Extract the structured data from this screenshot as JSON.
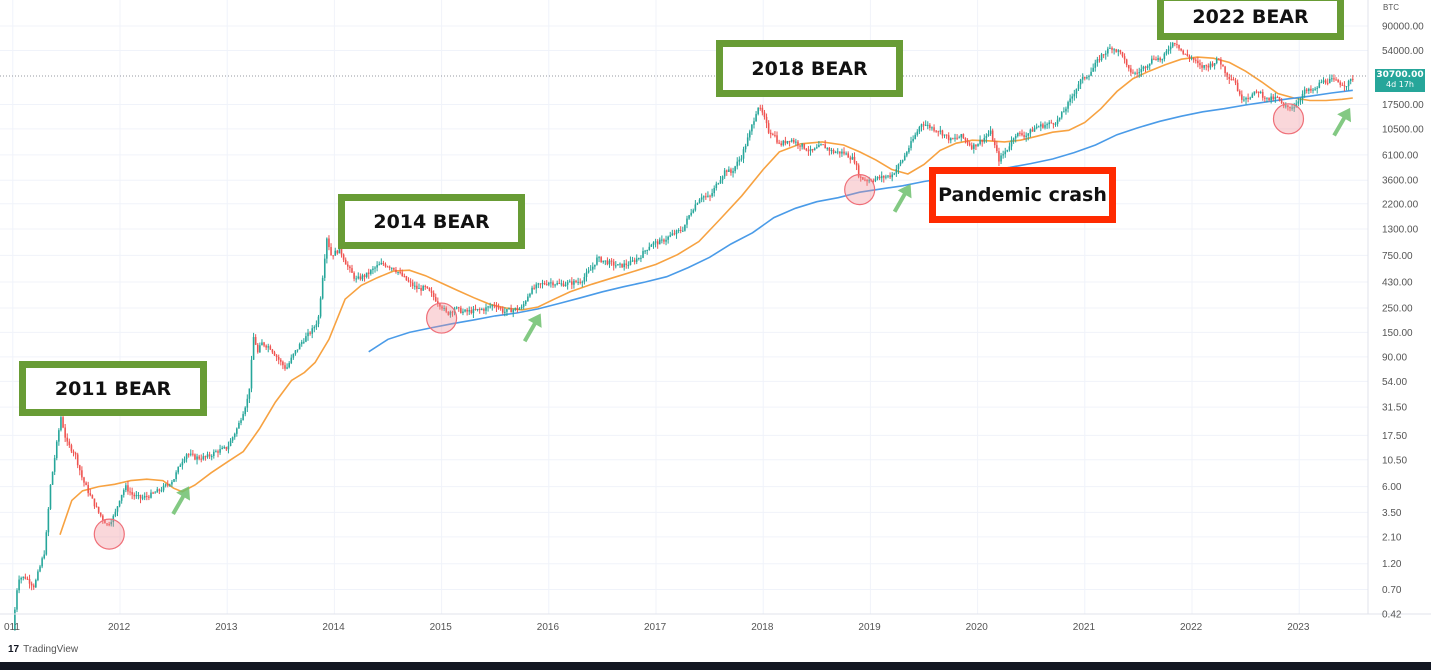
{
  "chart_data": {
    "type": "candlestick",
    "symbol_currency": "BTC",
    "scale": "log",
    "ylim": [
      0.42,
      90000
    ],
    "y_ticks": [
      "90000.00",
      "54000.00",
      "17500.00",
      "10500.00",
      "6100.00",
      "3600.00",
      "2200.00",
      "1300.00",
      "750.00",
      "430.00",
      "250.00",
      "150.00",
      "90.00",
      "54.00",
      "31.50",
      "17.50",
      "10.50",
      "6.00",
      "3.50",
      "2.10",
      "1.20",
      "0.70",
      "0.42"
    ],
    "x_ticks": [
      "011",
      "2012",
      "2013",
      "2014",
      "2015",
      "2016",
      "2017",
      "2018",
      "2019",
      "2020",
      "2021",
      "2022",
      "2023"
    ],
    "current_price": "30700.00",
    "current_price_countdown": "4d 17h",
    "price_series": [
      [
        "2011.00",
        0.3
      ],
      [
        "2011.05",
        0.9
      ],
      [
        "2011.12",
        0.9
      ],
      [
        "2011.20",
        0.75
      ],
      [
        "2011.30",
        1.6
      ],
      [
        "2011.35",
        6
      ],
      [
        "2011.42",
        17
      ],
      [
        "2011.45",
        26
      ],
      [
        "2011.50",
        15
      ],
      [
        "2011.58",
        12
      ],
      [
        "2011.65",
        7
      ],
      [
        "2011.72",
        5
      ],
      [
        "2011.80",
        3.5
      ],
      [
        "2011.88",
        2.7
      ],
      [
        "2011.95",
        3.3
      ],
      [
        "2012.00",
        4.8
      ],
      [
        "2012.05",
        6.0
      ],
      [
        "2012.12",
        5
      ],
      [
        "2012.20",
        4.7
      ],
      [
        "2012.30",
        5.1
      ],
      [
        "2012.40",
        5.8
      ],
      [
        "2012.50",
        7
      ],
      [
        "2012.57",
        10
      ],
      [
        "2012.62",
        12
      ],
      [
        "2012.70",
        11
      ],
      [
        "2012.80",
        11
      ],
      [
        "2012.90",
        12.5
      ],
      [
        "2013.00",
        13.5
      ],
      [
        "2013.10",
        21
      ],
      [
        "2013.20",
        40
      ],
      [
        "2013.25",
        150
      ],
      [
        "2013.28",
        95
      ],
      [
        "2013.32",
        120
      ],
      [
        "2013.40",
        110
      ],
      [
        "2013.50",
        80
      ],
      [
        "2013.55",
        70
      ],
      [
        "2013.62",
        95
      ],
      [
        "2013.70",
        125
      ],
      [
        "2013.80",
        160
      ],
      [
        "2013.85",
        200
      ],
      [
        "2013.90",
        600
      ],
      [
        "2013.93",
        1100
      ],
      [
        "2013.97",
        750
      ],
      [
        "2014.05",
        850
      ],
      [
        "2014.12",
        600
      ],
      [
        "2014.20",
        450
      ],
      [
        "2014.30",
        500
      ],
      [
        "2014.40",
        600
      ],
      [
        "2014.45",
        630
      ],
      [
        "2014.55",
        580
      ],
      [
        "2014.62",
        500
      ],
      [
        "2014.70",
        420
      ],
      [
        "2014.78",
        370
      ],
      [
        "2014.85",
        380
      ],
      [
        "2014.92",
        320
      ],
      [
        "2015.00",
        260
      ],
      [
        "2015.05",
        220
      ],
      [
        "2015.12",
        250
      ],
      [
        "2015.20",
        230
      ],
      [
        "2015.30",
        235
      ],
      [
        "2015.40",
        245
      ],
      [
        "2015.50",
        270
      ],
      [
        "2015.58",
        230
      ],
      [
        "2015.65",
        240
      ],
      [
        "2015.75",
        250
      ],
      [
        "2015.82",
        350
      ],
      [
        "2015.90",
        400
      ],
      [
        "2016.00",
        430
      ],
      [
        "2016.10",
        410
      ],
      [
        "2016.20",
        420
      ],
      [
        "2016.30",
        440
      ],
      [
        "2016.40",
        570
      ],
      [
        "2016.45",
        700
      ],
      [
        "2016.55",
        650
      ],
      [
        "2016.65",
        600
      ],
      [
        "2016.75",
        630
      ],
      [
        "2016.85",
        730
      ],
      [
        "2016.95",
        950
      ],
      [
        "2017.05",
        1000
      ],
      [
        "2017.15",
        1150
      ],
      [
        "2017.25",
        1300
      ],
      [
        "2017.33",
        1900
      ],
      [
        "2017.42",
        2600
      ],
      [
        "2017.50",
        2500
      ],
      [
        "2017.58",
        3500
      ],
      [
        "2017.65",
        4500
      ],
      [
        "2017.70",
        4200
      ],
      [
        "2017.80",
        6000
      ],
      [
        "2017.88",
        10000
      ],
      [
        "2017.95",
        17000
      ],
      [
        "2018.00",
        14000
      ],
      [
        "2018.05",
        10000
      ],
      [
        "2018.10",
        9500
      ],
      [
        "2018.15",
        7500
      ],
      [
        "2018.25",
        8500
      ],
      [
        "2018.35",
        7500
      ],
      [
        "2018.45",
        6500
      ],
      [
        "2018.55",
        7500
      ],
      [
        "2018.65",
        6500
      ],
      [
        "2018.75",
        6400
      ],
      [
        "2018.85",
        5500
      ],
      [
        "2018.90",
        3800
      ],
      [
        "2018.97",
        3600
      ],
      [
        "2019.10",
        3800
      ],
      [
        "2019.20",
        4000
      ],
      [
        "2019.30",
        5500
      ],
      [
        "2019.40",
        8500
      ],
      [
        "2019.48",
        12000
      ],
      [
        "2019.55",
        11000
      ],
      [
        "2019.65",
        10000
      ],
      [
        "2019.75",
        8300
      ],
      [
        "2019.85",
        9000
      ],
      [
        "2019.95",
        7200
      ],
      [
        "2020.05",
        8500
      ],
      [
        "2020.12",
        9800
      ],
      [
        "2020.20",
        5500
      ],
      [
        "2020.28",
        7000
      ],
      [
        "2020.35",
        9500
      ],
      [
        "2020.45",
        9200
      ],
      [
        "2020.55",
        11000
      ],
      [
        "2020.65",
        11500
      ],
      [
        "2020.75",
        12500
      ],
      [
        "2020.85",
        18000
      ],
      [
        "2020.95",
        28000
      ],
      [
        "2021.05",
        34000
      ],
      [
        "2021.15",
        48000
      ],
      [
        "2021.25",
        58000
      ],
      [
        "2021.35",
        50000
      ],
      [
        "2021.40",
        36000
      ],
      [
        "2021.48",
        33000
      ],
      [
        "2021.55",
        38000
      ],
      [
        "2021.65",
        47000
      ],
      [
        "2021.72",
        44000
      ],
      [
        "2021.80",
        61000
      ],
      [
        "2021.85",
        65000
      ],
      [
        "2021.92",
        50000
      ],
      [
        "2022.00",
        46000
      ],
      [
        "2022.08",
        38000
      ],
      [
        "2022.17",
        40000
      ],
      [
        "2022.25",
        45000
      ],
      [
        "2022.33",
        32000
      ],
      [
        "2022.40",
        29000
      ],
      [
        "2022.45",
        20000
      ],
      [
        "2022.55",
        21000
      ],
      [
        "2022.62",
        23000
      ],
      [
        "2022.70",
        19500
      ],
      [
        "2022.80",
        20000
      ],
      [
        "2022.85",
        16500
      ],
      [
        "2022.95",
        16800
      ],
      [
        "2023.05",
        23000
      ],
      [
        "2023.15",
        23500
      ],
      [
        "2023.20",
        28000
      ],
      [
        "2023.30",
        29000
      ],
      [
        "2023.40",
        27000
      ],
      [
        "2023.45",
        26500
      ],
      [
        "2023.50",
        30700
      ]
    ],
    "ma_orange": [
      [
        "2011.44",
        2.2
      ],
      [
        "2011.55",
        4.5
      ],
      [
        "2011.65",
        5.5
      ],
      [
        "2011.80",
        6.0
      ],
      [
        "2011.95",
        6.3
      ],
      [
        "2012.10",
        6.8
      ],
      [
        "2012.25",
        7.0
      ],
      [
        "2012.40",
        6.8
      ],
      [
        "2012.50",
        5.8
      ],
      [
        "2012.58",
        5.4
      ],
      [
        "2012.70",
        6.2
      ],
      [
        "2012.85",
        8.0
      ],
      [
        "2013.00",
        10
      ],
      [
        "2013.15",
        12.5
      ],
      [
        "2013.30",
        20
      ],
      [
        "2013.45",
        35
      ],
      [
        "2013.60",
        55
      ],
      [
        "2013.72",
        65
      ],
      [
        "2013.82",
        80
      ],
      [
        "2013.95",
        130
      ],
      [
        "2014.10",
        300
      ],
      [
        "2014.25",
        400
      ],
      [
        "2014.40",
        470
      ],
      [
        "2014.55",
        540
      ],
      [
        "2014.70",
        550
      ],
      [
        "2014.85",
        490
      ],
      [
        "2015.00",
        420
      ],
      [
        "2015.15",
        360
      ],
      [
        "2015.30",
        310
      ],
      [
        "2015.45",
        270
      ],
      [
        "2015.60",
        250
      ],
      [
        "2015.75",
        240
      ],
      [
        "2015.90",
        255
      ],
      [
        "2016.05",
        300
      ],
      [
        "2016.20",
        350
      ],
      [
        "2016.40",
        410
      ],
      [
        "2016.60",
        470
      ],
      [
        "2016.80",
        540
      ],
      [
        "2017.00",
        620
      ],
      [
        "2017.20",
        760
      ],
      [
        "2017.40",
        1000
      ],
      [
        "2017.60",
        1600
      ],
      [
        "2017.80",
        2600
      ],
      [
        "2018.00",
        4500
      ],
      [
        "2018.15",
        6500
      ],
      [
        "2018.35",
        7700
      ],
      [
        "2018.55",
        8000
      ],
      [
        "2018.75",
        7500
      ],
      [
        "2018.90",
        6500
      ],
      [
        "2019.05",
        5500
      ],
      [
        "2019.20",
        4500
      ],
      [
        "2019.35",
        4100
      ],
      [
        "2019.50",
        5000
      ],
      [
        "2019.65",
        6700
      ],
      [
        "2019.80",
        7800
      ],
      [
        "2019.95",
        8300
      ],
      [
        "2020.10",
        8200
      ],
      [
        "2020.25",
        8000
      ],
      [
        "2020.40",
        8300
      ],
      [
        "2020.55",
        9000
      ],
      [
        "2020.70",
        9800
      ],
      [
        "2020.85",
        10200
      ],
      [
        "2021.00",
        12000
      ],
      [
        "2021.15",
        16000
      ],
      [
        "2021.30",
        23000
      ],
      [
        "2021.45",
        30000
      ],
      [
        "2021.60",
        35000
      ],
      [
        "2021.75",
        40000
      ],
      [
        "2021.90",
        45000
      ],
      [
        "2022.05",
        47000
      ],
      [
        "2022.20",
        46000
      ],
      [
        "2022.35",
        42000
      ],
      [
        "2022.50",
        35000
      ],
      [
        "2022.65",
        28000
      ],
      [
        "2022.80",
        22000
      ],
      [
        "2022.95",
        20000
      ],
      [
        "2023.10",
        19000
      ],
      [
        "2023.25",
        19000
      ],
      [
        "2023.40",
        19500
      ],
      [
        "2023.50",
        20000
      ]
    ],
    "ma_blue": [
      [
        "2014.32",
        100
      ],
      [
        "2014.50",
        130
      ],
      [
        "2014.70",
        150
      ],
      [
        "2014.90",
        165
      ],
      [
        "2015.10",
        180
      ],
      [
        "2015.30",
        195
      ],
      [
        "2015.50",
        212
      ],
      [
        "2015.70",
        225
      ],
      [
        "2015.90",
        245
      ],
      [
        "2016.10",
        275
      ],
      [
        "2016.30",
        310
      ],
      [
        "2016.50",
        350
      ],
      [
        "2016.70",
        390
      ],
      [
        "2016.90",
        430
      ],
      [
        "2017.10",
        480
      ],
      [
        "2017.30",
        580
      ],
      [
        "2017.50",
        720
      ],
      [
        "2017.70",
        950
      ],
      [
        "2017.90",
        1200
      ],
      [
        "2018.10",
        1650
      ],
      [
        "2018.30",
        2000
      ],
      [
        "2018.50",
        2300
      ],
      [
        "2018.70",
        2500
      ],
      [
        "2018.90",
        2800
      ],
      [
        "2019.10",
        3000
      ],
      [
        "2019.30",
        3200
      ],
      [
        "2019.50",
        3500
      ],
      [
        "2019.70",
        3750
      ],
      [
        "2019.90",
        4000
      ],
      [
        "2020.10",
        4400
      ],
      [
        "2020.30",
        4700
      ],
      [
        "2020.50",
        5100
      ],
      [
        "2020.70",
        5600
      ],
      [
        "2020.90",
        6400
      ],
      [
        "2021.10",
        7500
      ],
      [
        "2021.30",
        9300
      ],
      [
        "2021.50",
        10800
      ],
      [
        "2021.70",
        12300
      ],
      [
        "2021.90",
        13700
      ],
      [
        "2022.10",
        15000
      ],
      [
        "2022.30",
        16000
      ],
      [
        "2022.50",
        17300
      ],
      [
        "2022.70",
        18500
      ],
      [
        "2022.90",
        19700
      ],
      [
        "2023.10",
        20800
      ],
      [
        "2023.30",
        22200
      ],
      [
        "2023.50",
        23500
      ]
    ],
    "bottom_circles": [
      "2011.90",
      "2015.00",
      "2018.90",
      "2022.90"
    ],
    "arrows": [
      "2012.57",
      "2015.85",
      "2019.30",
      "2023.40"
    ]
  },
  "annotations": {
    "bear_2011": "2011 BEAR",
    "bear_2014": "2014 BEAR",
    "bear_2018": "2018 BEAR",
    "bear_2022": "2022 BEAR",
    "pandemic": "Pandemic crash"
  },
  "footer": {
    "brand_logo": "17",
    "brand": "TradingView"
  },
  "colors": {
    "up": "#26a69a",
    "down": "#ef5350",
    "ma_orange": "#f7a241",
    "ma_blue": "#4a9be8",
    "bear_border": "#689c35",
    "pandemic_border": "#ff2a00"
  }
}
